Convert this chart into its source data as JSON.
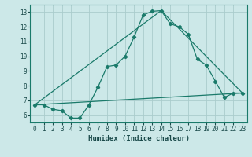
{
  "xlabel": "Humidex (Indice chaleur)",
  "background_color": "#cce8e8",
  "grid_color": "#aacccc",
  "line_color": "#1a7a6a",
  "xlim": [
    -0.5,
    23.5
  ],
  "ylim": [
    5.5,
    13.5
  ],
  "xticks": [
    0,
    1,
    2,
    3,
    4,
    5,
    6,
    7,
    8,
    9,
    10,
    11,
    12,
    13,
    14,
    15,
    16,
    17,
    18,
    19,
    20,
    21,
    22,
    23
  ],
  "yticks": [
    6,
    7,
    8,
    9,
    10,
    11,
    12,
    13
  ],
  "line1_x": [
    0,
    1,
    2,
    3,
    4,
    5,
    6,
    7,
    8,
    9,
    10,
    11,
    12,
    13,
    14,
    15,
    16,
    17,
    18,
    19,
    20,
    21,
    22,
    23
  ],
  "line1_y": [
    6.7,
    6.7,
    6.4,
    6.3,
    5.8,
    5.8,
    6.7,
    7.9,
    9.3,
    9.4,
    10.0,
    11.3,
    12.8,
    13.05,
    13.1,
    12.2,
    12.0,
    11.5,
    9.8,
    9.4,
    8.3,
    7.2,
    7.5,
    7.5
  ],
  "line2_x": [
    0,
    14,
    23
  ],
  "line2_y": [
    6.7,
    13.1,
    7.5
  ],
  "line3_x": [
    0,
    23
  ],
  "line3_y": [
    6.7,
    7.5
  ]
}
